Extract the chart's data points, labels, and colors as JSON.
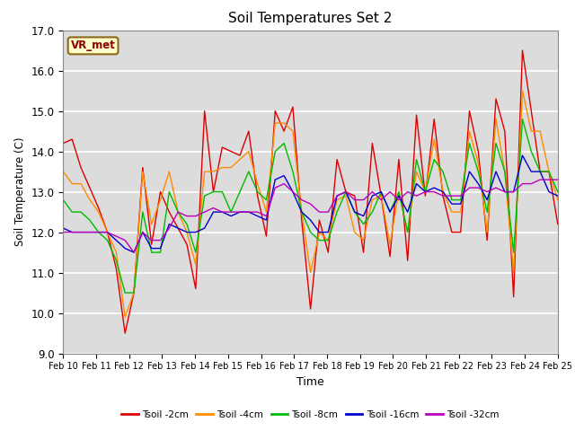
{
  "title": "Soil Temperatures Set 2",
  "xlabel": "Time",
  "ylabel": "Soil Temperature (C)",
  "ylim": [
    9.0,
    17.0
  ],
  "yticks": [
    9.0,
    10.0,
    11.0,
    12.0,
    13.0,
    14.0,
    15.0,
    16.0,
    17.0
  ],
  "annotation": "VR_met",
  "bg_color": "#dcdcdc",
  "series_order": [
    "Tsoil -2cm",
    "Tsoil -4cm",
    "Tsoil -8cm",
    "Tsoil -16cm",
    "Tsoil -32cm"
  ],
  "series": {
    "Tsoil -2cm": {
      "color": "#dd0000",
      "values": [
        14.2,
        14.3,
        13.6,
        13.1,
        12.6,
        12.0,
        11.1,
        9.5,
        10.5,
        13.6,
        11.7,
        13.0,
        12.5,
        12.1,
        11.7,
        10.6,
        15.0,
        13.0,
        14.1,
        14.0,
        13.9,
        14.5,
        12.9,
        11.9,
        15.0,
        14.5,
        15.1,
        12.3,
        10.1,
        12.3,
        11.5,
        13.8,
        13.0,
        12.9,
        11.5,
        14.2,
        12.9,
        11.4,
        13.8,
        11.3,
        14.9,
        12.9,
        14.8,
        12.9,
        12.0,
        12.0,
        15.0,
        14.0,
        11.8,
        15.3,
        14.5,
        10.4,
        16.5,
        15.0,
        13.5,
        13.5,
        12.2
      ]
    },
    "Tsoil -4cm": {
      "color": "#ff8c00",
      "values": [
        13.5,
        13.2,
        13.2,
        12.8,
        12.5,
        12.0,
        11.5,
        9.9,
        10.5,
        13.5,
        12.2,
        12.8,
        13.5,
        12.5,
        12.0,
        11.2,
        13.5,
        13.5,
        13.6,
        13.6,
        13.8,
        14.0,
        13.2,
        12.5,
        14.7,
        14.7,
        14.5,
        12.5,
        11.0,
        12.0,
        11.8,
        12.8,
        12.9,
        12.0,
        11.8,
        12.8,
        12.9,
        11.7,
        13.0,
        12.0,
        13.5,
        13.0,
        14.3,
        13.0,
        12.5,
        12.5,
        14.5,
        13.7,
        12.0,
        14.8,
        13.5,
        11.0,
        15.5,
        14.5,
        14.5,
        13.5,
        12.8
      ]
    },
    "Tsoil -8cm": {
      "color": "#00bb00",
      "values": [
        12.8,
        12.5,
        12.5,
        12.3,
        12.0,
        11.8,
        11.3,
        10.5,
        10.5,
        12.5,
        11.5,
        11.5,
        13.0,
        12.5,
        12.2,
        11.5,
        12.9,
        13.0,
        13.0,
        12.5,
        13.0,
        13.5,
        13.0,
        12.8,
        14.0,
        14.2,
        13.5,
        12.5,
        12.0,
        11.8,
        11.8,
        12.5,
        13.0,
        12.5,
        12.2,
        12.5,
        13.0,
        12.5,
        13.0,
        12.0,
        13.8,
        13.0,
        13.8,
        13.5,
        12.8,
        12.8,
        14.2,
        13.5,
        12.5,
        14.2,
        13.5,
        11.5,
        14.8,
        14.0,
        13.5,
        13.5,
        13.0
      ]
    },
    "Tsoil -16cm": {
      "color": "#0000cc",
      "values": [
        12.1,
        12.0,
        12.0,
        12.0,
        12.0,
        12.0,
        11.8,
        11.6,
        11.5,
        12.0,
        11.6,
        11.6,
        12.2,
        12.1,
        12.0,
        12.0,
        12.1,
        12.5,
        12.5,
        12.4,
        12.5,
        12.5,
        12.4,
        12.3,
        13.3,
        13.4,
        13.0,
        12.5,
        12.3,
        12.0,
        12.0,
        12.9,
        13.0,
        12.5,
        12.4,
        12.9,
        13.0,
        12.5,
        12.9,
        12.5,
        13.2,
        13.0,
        13.1,
        13.0,
        12.7,
        12.7,
        13.5,
        13.2,
        12.8,
        13.5,
        13.0,
        13.0,
        13.9,
        13.5,
        13.5,
        13.0,
        12.9
      ]
    },
    "Tsoil -32cm": {
      "color": "#bb00bb",
      "values": [
        12.0,
        12.0,
        12.0,
        12.0,
        12.0,
        12.0,
        11.9,
        11.8,
        11.5,
        12.0,
        11.8,
        11.8,
        12.1,
        12.5,
        12.4,
        12.4,
        12.5,
        12.6,
        12.5,
        12.5,
        12.5,
        12.5,
        12.5,
        12.4,
        13.1,
        13.2,
        13.0,
        12.8,
        12.7,
        12.5,
        12.5,
        12.9,
        13.0,
        12.8,
        12.8,
        13.0,
        12.8,
        13.0,
        12.8,
        13.0,
        12.9,
        13.0,
        13.0,
        12.9,
        12.9,
        12.9,
        13.1,
        13.1,
        13.0,
        13.1,
        13.0,
        13.0,
        13.2,
        13.2,
        13.3,
        13.3,
        13.3
      ]
    }
  },
  "x_labels": [
    "Feb 10",
    "Feb 11",
    "Feb 12",
    "Feb 13",
    "Feb 14",
    "Feb 15",
    "Feb 16",
    "Feb 17",
    "Feb 18",
    "Feb 19",
    "Feb 20",
    "Feb 21",
    "Feb 22",
    "Feb 23",
    "Feb 24",
    "Feb 25"
  ],
  "n_points": 57,
  "n_days": 15
}
